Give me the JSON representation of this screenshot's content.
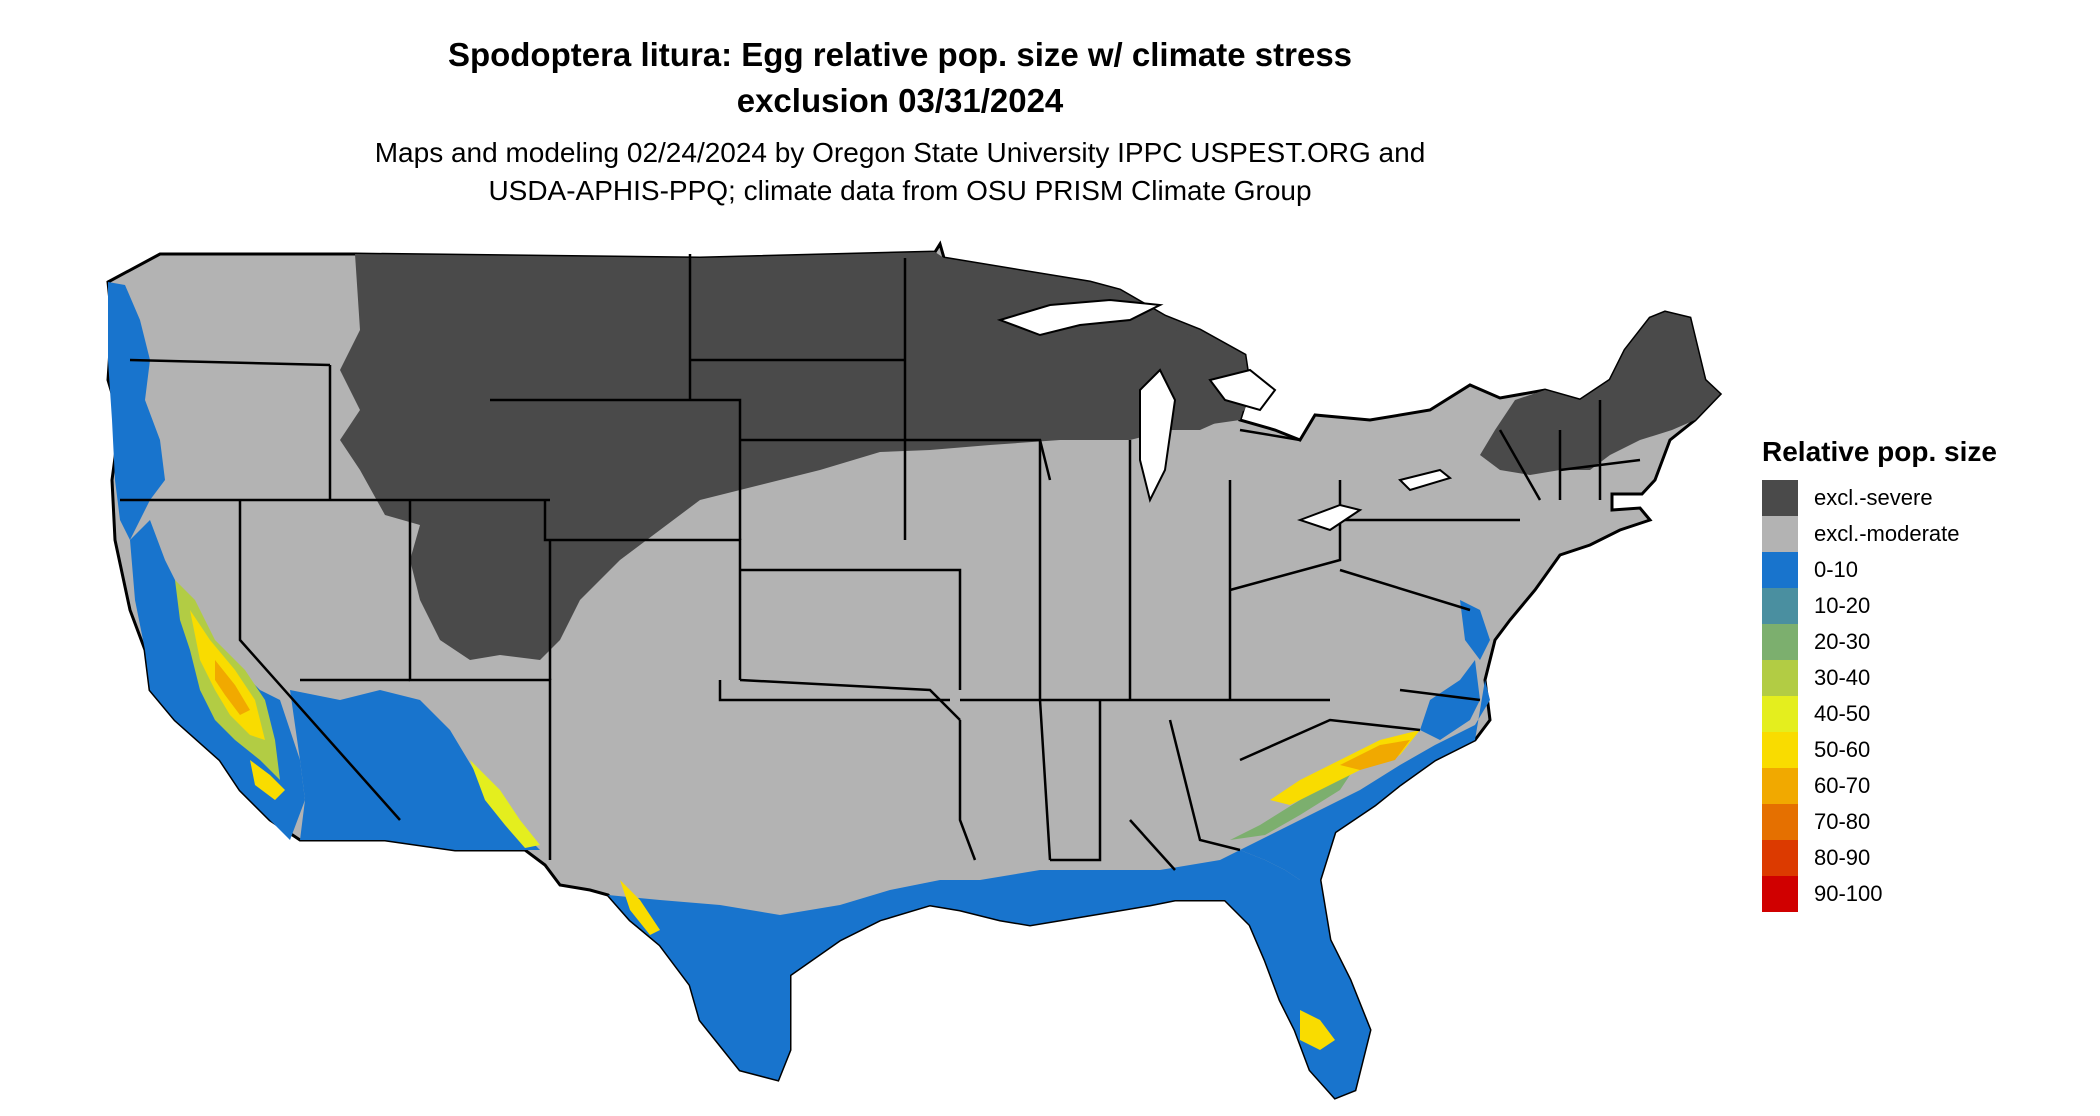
{
  "title_line1": "Spodoptera litura: Egg relative pop. size w/ climate stress",
  "title_line2": "exclusion 03/31/2024",
  "subtitle_line1": "Maps and modeling 02/24/2024 by Oregon State University IPPC USPEST.ORG and",
  "subtitle_line2": "USDA-APHIS-PPQ; climate data from OSU PRISM Climate Group",
  "legend": {
    "title": "Relative pop. size",
    "items": [
      {
        "label": "excl.-severe",
        "color": "#4a4a4a"
      },
      {
        "label": "excl.-moderate",
        "color": "#b3b3b3"
      },
      {
        "label": "0-10",
        "color": "#1874cd"
      },
      {
        "label": "10-20",
        "color": "#4a8fa0"
      },
      {
        "label": "20-30",
        "color": "#7caf6e"
      },
      {
        "label": "30-40",
        "color": "#b2cc44"
      },
      {
        "label": "40-50",
        "color": "#e4ee1e"
      },
      {
        "label": "50-60",
        "color": "#f9dc00"
      },
      {
        "label": "60-70",
        "color": "#f1a900"
      },
      {
        "label": "70-80",
        "color": "#e57000"
      },
      {
        "label": "80-90",
        "color": "#dc3a00"
      },
      {
        "label": "90-100",
        "color": "#d00000"
      }
    ]
  }
}
